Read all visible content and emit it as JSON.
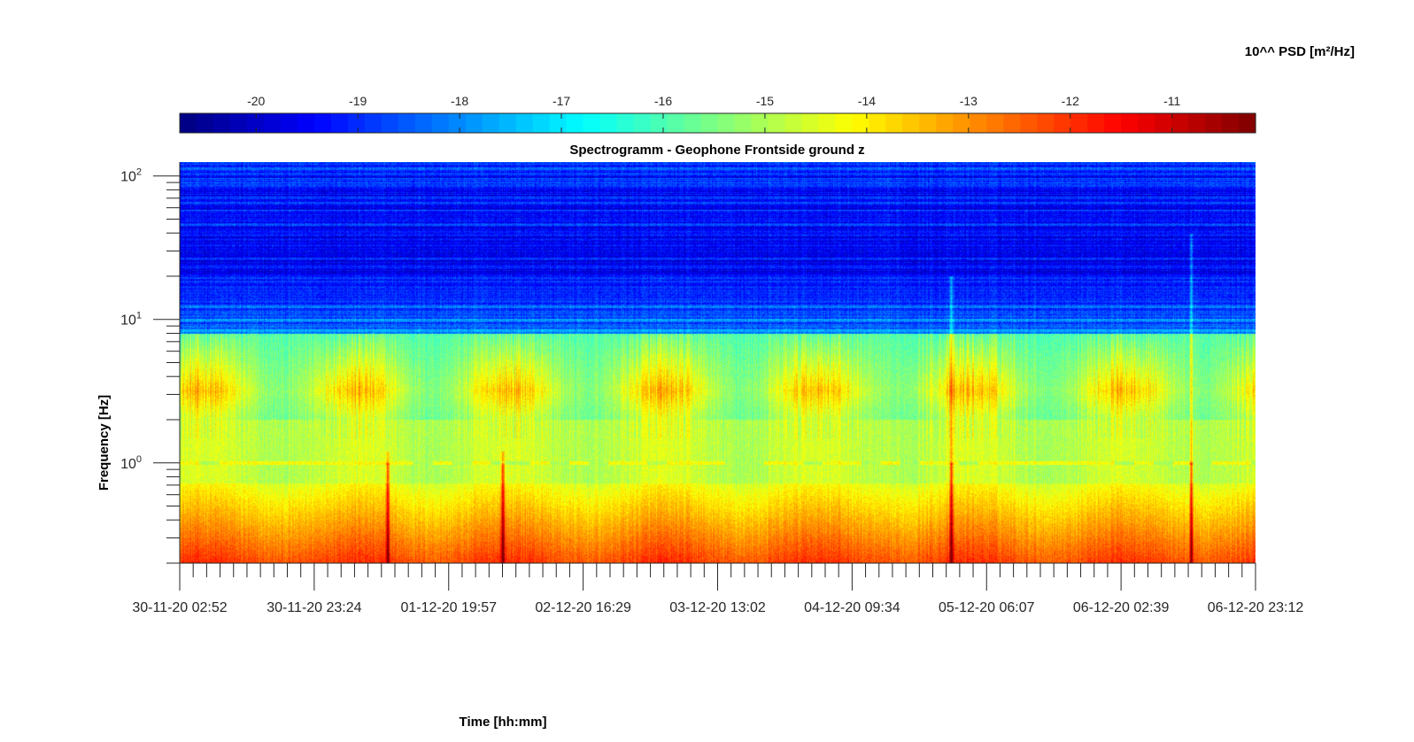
{
  "chart_data": {
    "type": "heatmap",
    "title": "Spectrogramm - Geophone Frontside ground z",
    "xlabel": "Time [hh:mm]",
    "ylabel": "Frequency [Hz]",
    "yscale": "log",
    "ylim": [
      0.2,
      125
    ],
    "y_ticks": [
      {
        "base": "10",
        "exp": "2",
        "value": 100
      },
      {
        "base": "10",
        "exp": "1",
        "value": 10
      },
      {
        "base": "10",
        "exp": "0",
        "value": 1
      }
    ],
    "x_ticks": [
      "30-11-20 02:52",
      "30-11-20 23:24",
      "01-12-20 19:57",
      "02-12-20 16:29",
      "03-12-20 13:02",
      "04-12-20 09:34",
      "05-12-20 06:07",
      "06-12-20 02:39",
      "06-12-20 23:12"
    ],
    "colorbar": {
      "label": "10^^ PSD [m²/Hz]",
      "ticks": [
        "-20",
        "-19",
        "-18",
        "-17",
        "-16",
        "-15",
        "-14",
        "-13",
        "-12",
        "-11"
      ],
      "range": [
        -20.75,
        -10.18
      ],
      "colormap": "jet"
    },
    "grid": false,
    "features": {
      "low_frequency_band_hz": [
        0.2,
        0.7
      ],
      "low_frequency_level": -12.6,
      "mid_band_hz": [
        2,
        5
      ],
      "mid_band_level": -14,
      "high_frequency_level": -19.5,
      "line_at_1hz_level": -14.2,
      "transient_events_fraction_of_time": [
        0.193,
        0.3,
        0.717,
        0.94
      ]
    }
  }
}
